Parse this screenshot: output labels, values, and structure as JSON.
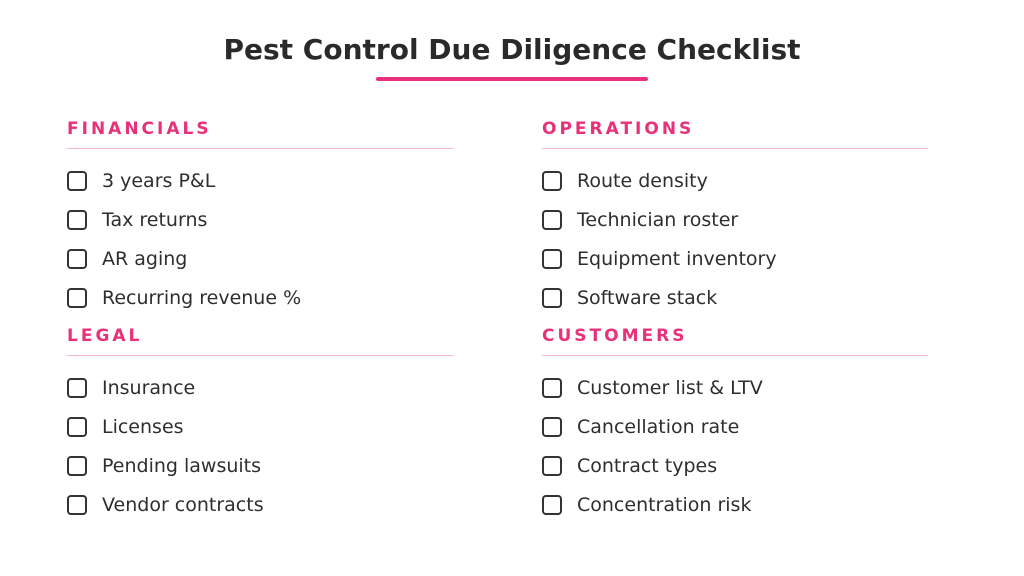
{
  "title": "Pest Control Due Diligence Checklist",
  "colors": {
    "accent": "#e8317a",
    "rule": "#f3b6cf",
    "text": "#2e2e2e",
    "checkbox_border": "#333333"
  },
  "sections": [
    {
      "heading": "FINANCIALS",
      "items": [
        "3 years P&L",
        "Tax returns",
        "AR aging",
        "Recurring revenue %"
      ]
    },
    {
      "heading": "OPERATIONS",
      "items": [
        "Route density",
        "Technician roster",
        "Equipment inventory",
        "Software stack"
      ]
    },
    {
      "heading": "LEGAL",
      "items": [
        "Insurance",
        "Licenses",
        "Pending lawsuits",
        "Vendor contracts"
      ]
    },
    {
      "heading": "CUSTOMERS",
      "items": [
        "Customer list & LTV",
        "Cancellation rate",
        "Contract types",
        "Concentration risk"
      ]
    }
  ]
}
